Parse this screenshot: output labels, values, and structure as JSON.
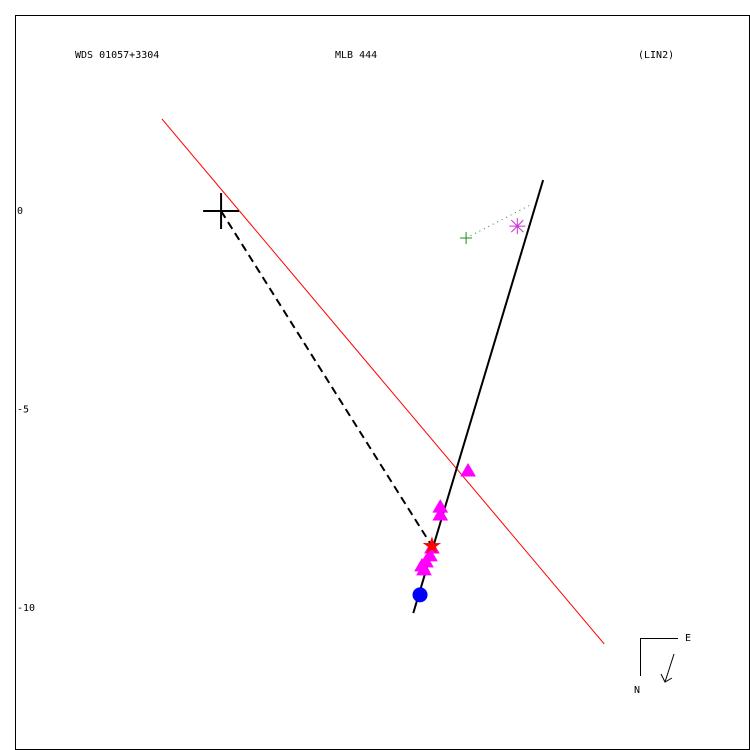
{
  "chart_data": {
    "type": "scatter",
    "title": "WDS 01057+3304",
    "subtitle": "MLB 444",
    "note": "(LIN2)",
    "compass": {
      "east": "E",
      "north": "N"
    },
    "xlim": [
      -5.19,
      13.32
    ],
    "ylim": [
      -13.58,
      4.94
    ],
    "yticks": [
      0,
      -5,
      -10
    ],
    "lines": [
      {
        "color": "#ff0000",
        "style": "solid",
        "x": [
          -1.49,
          9.65
        ],
        "y": [
          2.32,
          -10.91
        ]
      },
      {
        "color": "#000000",
        "style": "solid",
        "x": [
          4.84,
          8.11
        ],
        "y": [
          -10.13,
          0.78
        ]
      },
      {
        "color": "#000000",
        "style": "dashed",
        "x": [
          0,
          5.29
        ],
        "y": [
          0,
          -8.41
        ]
      },
      {
        "color": "#228b22",
        "style": "dotted",
        "x": [
          6.17,
          7.78
        ],
        "y": [
          -0.68,
          0.15
        ]
      }
    ],
    "series": [
      {
        "marker": "cross",
        "color": "#000000",
        "x": [
          0
        ],
        "y": [
          0
        ]
      },
      {
        "marker": "triangle",
        "color": "#ff00ff",
        "x": [
          6.22,
          5.52,
          5.52,
          5.31,
          5.26,
          5.16,
          5.11,
          5.06
        ],
        "y": [
          -6.55,
          -7.46,
          -7.66,
          -8.49,
          -8.69,
          -8.84,
          -9.04,
          -8.94
        ]
      },
      {
        "marker": "star",
        "color": "#ff0000",
        "x": [
          5.31
        ],
        "y": [
          -8.44
        ]
      },
      {
        "marker": "circle",
        "color": "#0000ff",
        "x": [
          5.01
        ],
        "y": [
          -9.67
        ]
      },
      {
        "marker": "plus",
        "color": "#228b22",
        "x": [
          6.17
        ],
        "y": [
          -0.68
        ]
      },
      {
        "marker": "asterisk",
        "color": "#cc33cc",
        "x": [
          7.46
        ],
        "y": [
          -0.38
        ]
      }
    ]
  }
}
